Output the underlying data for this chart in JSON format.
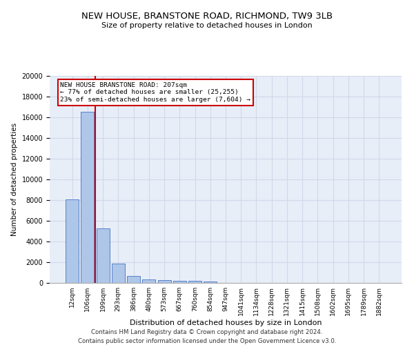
{
  "title": "NEW HOUSE, BRANSTONE ROAD, RICHMOND, TW9 3LB",
  "subtitle": "Size of property relative to detached houses in London",
  "xlabel": "Distribution of detached houses by size in London",
  "ylabel": "Number of detached properties",
  "footer_line1": "Contains HM Land Registry data © Crown copyright and database right 2024.",
  "footer_line2": "Contains public sector information licensed under the Open Government Licence v3.0.",
  "bar_labels": [
    "12sqm",
    "106sqm",
    "199sqm",
    "293sqm",
    "386sqm",
    "480sqm",
    "573sqm",
    "667sqm",
    "760sqm",
    "854sqm",
    "947sqm",
    "1041sqm",
    "1134sqm",
    "1228sqm",
    "1321sqm",
    "1415sqm",
    "1508sqm",
    "1602sqm",
    "1695sqm",
    "1789sqm",
    "1882sqm"
  ],
  "bar_values": [
    8100,
    16500,
    5300,
    1850,
    650,
    350,
    270,
    215,
    195,
    165,
    0,
    0,
    0,
    0,
    0,
    0,
    0,
    0,
    0,
    0,
    0
  ],
  "bar_color": "#aec6e8",
  "bar_edge_color": "#4472c4",
  "grid_color": "#d0d8e8",
  "background_color": "#e8eef8",
  "red_line_color": "#cc0000",
  "annotation_text": "NEW HOUSE BRANSTONE ROAD: 207sqm\n← 77% of detached houses are smaller (25,255)\n23% of semi-detached houses are larger (7,604) →",
  "annotation_box_color": "#cc0000",
  "ylim": [
    0,
    20000
  ],
  "yticks": [
    0,
    2000,
    4000,
    6000,
    8000,
    10000,
    12000,
    14000,
    16000,
    18000,
    20000
  ],
  "figsize": [
    6.0,
    5.0
  ],
  "dpi": 100
}
